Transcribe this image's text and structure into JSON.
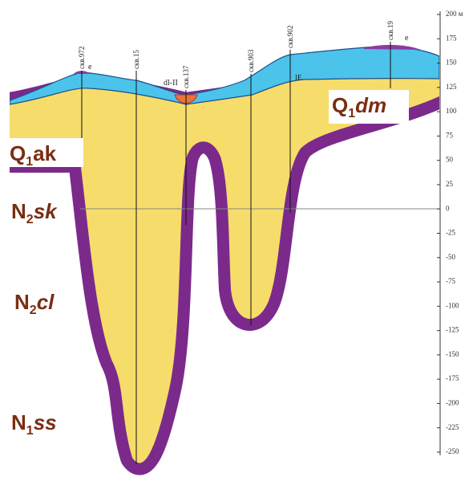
{
  "boreholes": [
    "скв.972",
    "скв.15",
    "скв.137",
    "скв.903",
    "скв.902",
    "скв.19"
  ],
  "annotations": [
    "e",
    "dl-II",
    "lE",
    "e"
  ],
  "formations": [
    {
      "symbol": "Q",
      "index": "1",
      "suffix": "ak"
    },
    {
      "symbol": "N",
      "index": "2",
      "suffix": "sk"
    },
    {
      "symbol": "N",
      "index": "2",
      "suffix": "cl"
    },
    {
      "symbol": "N",
      "index": "1",
      "suffix": "ss"
    },
    {
      "symbol": "Q",
      "index": "1",
      "suffix": "dm"
    }
  ],
  "scale": {
    "ticks": [
      {
        "value": 200,
        "label": "200 м"
      },
      175,
      150,
      125,
      100,
      75,
      50,
      25,
      0,
      -25,
      -50,
      -75,
      -100,
      -125,
      -150,
      -175,
      -200,
      -225,
      -250
    ]
  }
}
